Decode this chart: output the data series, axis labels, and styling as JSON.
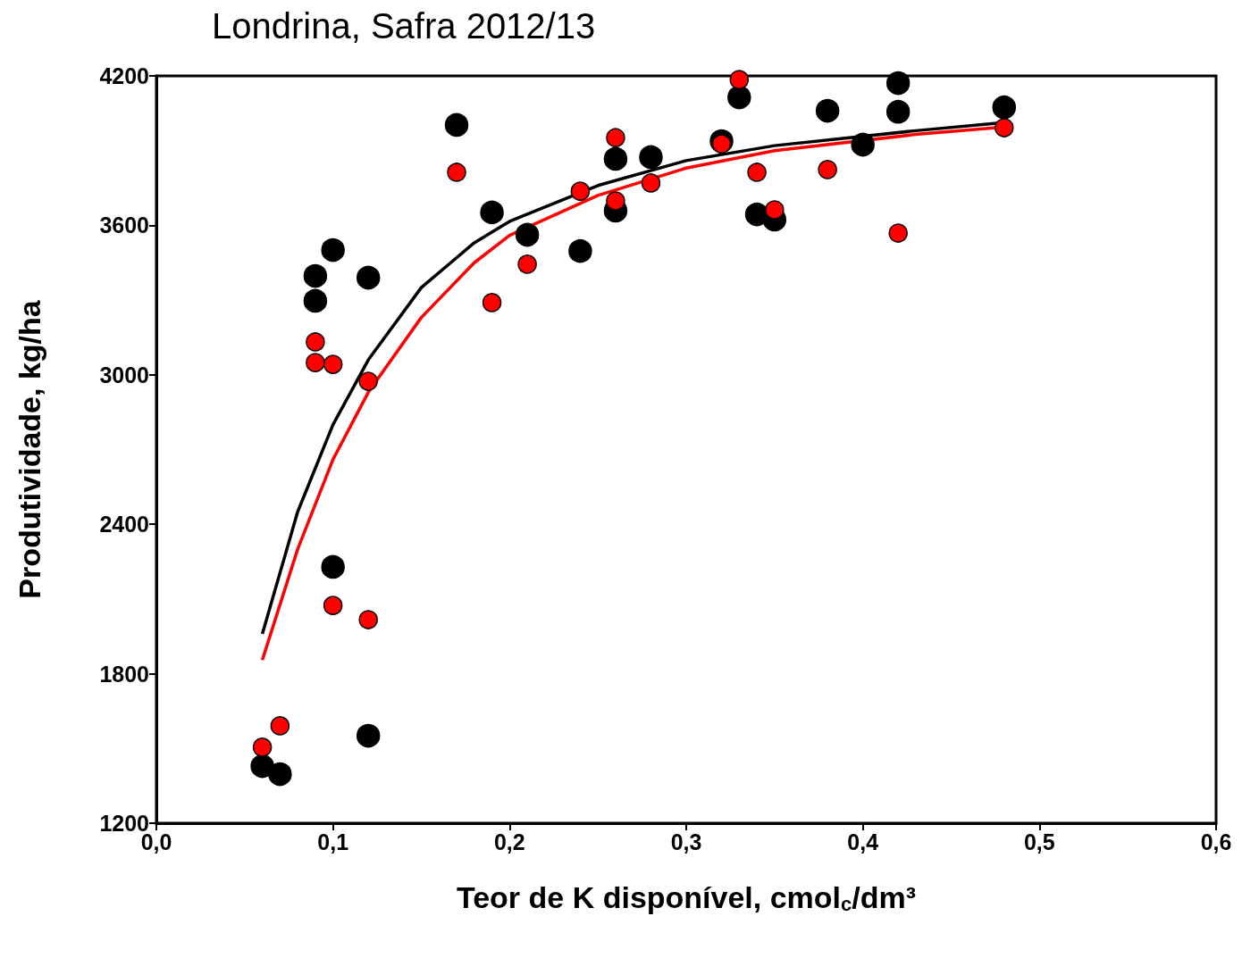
{
  "chart_data": {
    "type": "scatter",
    "title": "Londrina, Safra 2012/13",
    "xlabel": "Teor de K disponível, cmol$_{c}$/dm³",
    "ylabel": "Produtividade, kg/ha",
    "xlim": [
      0,
      0.6
    ],
    "xticks": [
      {
        "value": 0,
        "label": "0,0"
      },
      {
        "value": 0.1,
        "label": "0,1"
      },
      {
        "value": 0.2,
        "label": "0,2"
      },
      {
        "value": 0.3,
        "label": "0,3"
      },
      {
        "value": 0.4,
        "label": "0,4"
      },
      {
        "value": 0.5,
        "label": "0,5"
      },
      {
        "value": 0.6,
        "label": "0,6"
      }
    ],
    "ylim": [
      1200,
      4200
    ],
    "yticks": [
      1200,
      1800,
      2400,
      3000,
      3600,
      4200
    ],
    "grid": false,
    "marker": "circle",
    "series": [
      {
        "type": "line",
        "marker": "none",
        "color": "#000000",
        "x": [
          0.06,
          0.08,
          0.1,
          0.12,
          0.15,
          0.18,
          0.2,
          0.25,
          0.3,
          0.35,
          0.43,
          0.48
        ],
        "values": [
          1960,
          2450,
          2800,
          3060,
          3350,
          3530,
          3616,
          3760,
          3860,
          3920,
          3980,
          4013
        ]
      },
      {
        "type": "line",
        "marker": "none",
        "color": "#ff0000",
        "x": [
          0.06,
          0.08,
          0.1,
          0.12,
          0.15,
          0.18,
          0.2,
          0.25,
          0.3,
          0.35,
          0.43,
          0.48
        ],
        "values": [
          1855,
          2300,
          2660,
          2930,
          3230,
          3450,
          3560,
          3720,
          3830,
          3900,
          3965,
          3995
        ]
      },
      {
        "color": "#000000",
        "x": [
          0.06,
          0.07,
          0.09,
          0.09,
          0.1,
          0.1,
          0.12,
          0.12,
          0.17,
          0.19,
          0.21,
          0.24,
          0.26,
          0.26,
          0.28,
          0.32,
          0.33,
          0.34,
          0.35,
          0.38,
          0.4,
          0.42,
          0.42,
          0.48
        ],
        "values": [
          1429,
          1397,
          3397,
          3297,
          3501,
          2229,
          3390,
          1551,
          4003,
          3652,
          3562,
          3497,
          3867,
          3659,
          3874,
          3938,
          4114,
          3644,
          3623,
          4060,
          3924,
          4171,
          4056,
          4074
        ]
      },
      {
        "color": "#ff0000",
        "x": [
          0.06,
          0.07,
          0.09,
          0.09,
          0.1,
          0.1,
          0.12,
          0.12,
          0.17,
          0.19,
          0.21,
          0.24,
          0.26,
          0.26,
          0.28,
          0.32,
          0.33,
          0.34,
          0.35,
          0.38,
          0.42,
          0.48
        ],
        "values": [
          1505,
          1591,
          3132,
          3049,
          3042,
          2074,
          2974,
          2017,
          3813,
          3290,
          3444,
          3737,
          3952,
          3698,
          3770,
          3927,
          4185,
          3813,
          3662,
          3824,
          3569,
          3992
        ]
      }
    ]
  }
}
